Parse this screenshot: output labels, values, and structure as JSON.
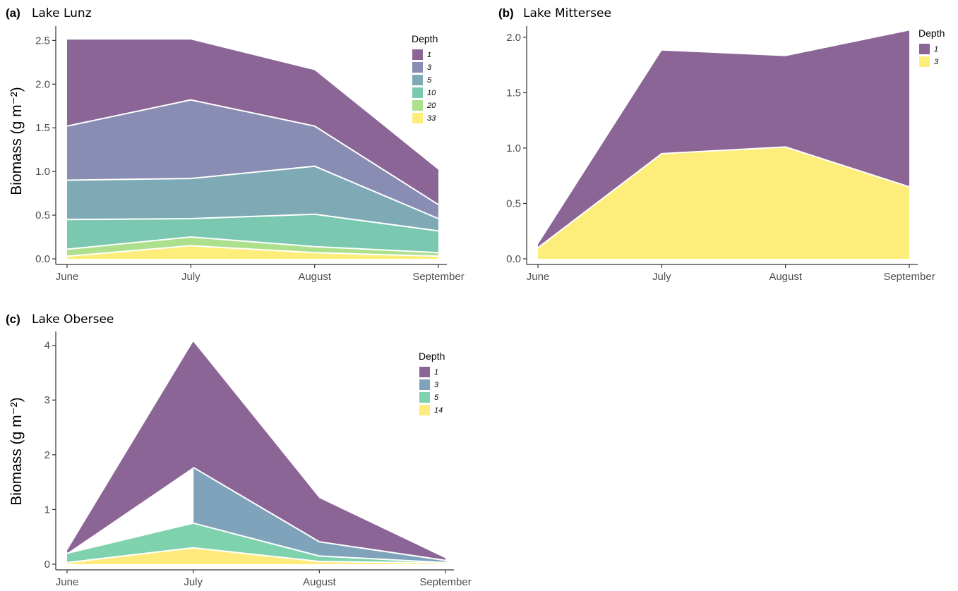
{
  "colors": {
    "d1": "#8b6596",
    "d3_a": "#8a8db3",
    "d5_a": "#7eaab6",
    "d10": "#7ac8b0",
    "d20": "#ade08d",
    "d33": "#fdee7c",
    "d3_c": "#7fa3bb",
    "d5_c": "#7fd2ae",
    "d14": "#fdec7d",
    "separator": "#ffffff",
    "axis": "#333333"
  },
  "chart_data": [
    {
      "id": "a",
      "type": "area",
      "stacked": true,
      "tag": "(a)",
      "title": "Lake Lunz",
      "ylabel": "Biomass (g m⁻²)",
      "xlabel": "",
      "categories": [
        "June",
        "July",
        "August",
        "September"
      ],
      "ylim": [
        0,
        2.6
      ],
      "yticks": [
        "0.0",
        "0.5",
        "1.0",
        "1.5",
        "2.0",
        "2.5"
      ],
      "ytick_values": [
        0,
        0.5,
        1.0,
        1.5,
        2.0,
        2.5
      ],
      "grid": false,
      "legend_position": "right-top",
      "legend_title": "Depth",
      "series": [
        {
          "name": "1",
          "color_key": "d1",
          "values": [
            0.99,
            0.69,
            0.64,
            0.4
          ]
        },
        {
          "name": "3",
          "color_key": "d3_a",
          "values": [
            0.62,
            0.9,
            0.46,
            0.16
          ]
        },
        {
          "name": "5",
          "color_key": "d5_a",
          "values": [
            0.45,
            0.46,
            0.55,
            0.14
          ]
        },
        {
          "name": "10",
          "color_key": "d10",
          "values": [
            0.34,
            0.21,
            0.37,
            0.25
          ]
        },
        {
          "name": "20",
          "color_key": "d20",
          "values": [
            0.08,
            0.1,
            0.07,
            0.04
          ]
        },
        {
          "name": "33",
          "color_key": "d33",
          "values": [
            0.03,
            0.15,
            0.07,
            0.03
          ]
        }
      ]
    },
    {
      "id": "b",
      "type": "area",
      "stacked": true,
      "tag": "(b)",
      "title": "Lake Mittersee",
      "ylabel": "",
      "xlabel": "",
      "categories": [
        "June",
        "July",
        "August",
        "September"
      ],
      "ylim": [
        0,
        2.05
      ],
      "yticks": [
        "0.0",
        "0.5",
        "1.0",
        "1.5",
        "2.0"
      ],
      "ytick_values": [
        0,
        0.5,
        1.0,
        1.5,
        2.0
      ],
      "grid": false,
      "legend_position": "right-top",
      "legend_title": "Depth",
      "series": [
        {
          "name": "1",
          "color_key": "d1",
          "values": [
            0.03,
            0.93,
            0.82,
            1.41
          ]
        },
        {
          "name": "3",
          "color_key": "d33",
          "values": [
            0.1,
            0.95,
            1.01,
            0.65
          ]
        }
      ]
    },
    {
      "id": "c",
      "type": "area",
      "stacked": true,
      "tag": "(c)",
      "title": "Lake Obersee",
      "ylabel": "Biomass (g m⁻²)",
      "xlabel": "",
      "categories": [
        "June",
        "July",
        "August",
        "September"
      ],
      "ylim": [
        0,
        4.15
      ],
      "yticks": [
        "0",
        "1",
        "2",
        "3",
        "4"
      ],
      "ytick_values": [
        0,
        1,
        2,
        3,
        4
      ],
      "grid": false,
      "legend_position": "right-top",
      "legend_title": "Depth",
      "series": [
        {
          "name": "1",
          "color_key": "d1",
          "values": [
            0.05,
            2.3,
            0.8,
            0.04
          ]
        },
        {
          "name": "3",
          "color_key": "d3_c",
          "values": [
            0.0,
            1.02,
            0.26,
            0.04
          ]
        },
        {
          "name": "5",
          "color_key": "d5_c",
          "values": [
            0.17,
            0.45,
            0.1,
            0.01
          ]
        },
        {
          "name": "14",
          "color_key": "d14",
          "values": [
            0.03,
            0.3,
            0.05,
            0.02
          ]
        }
      ],
      "segment_gaps": [
        {
          "series": "3",
          "from_index": 0,
          "to_index": 1
        }
      ]
    }
  ]
}
